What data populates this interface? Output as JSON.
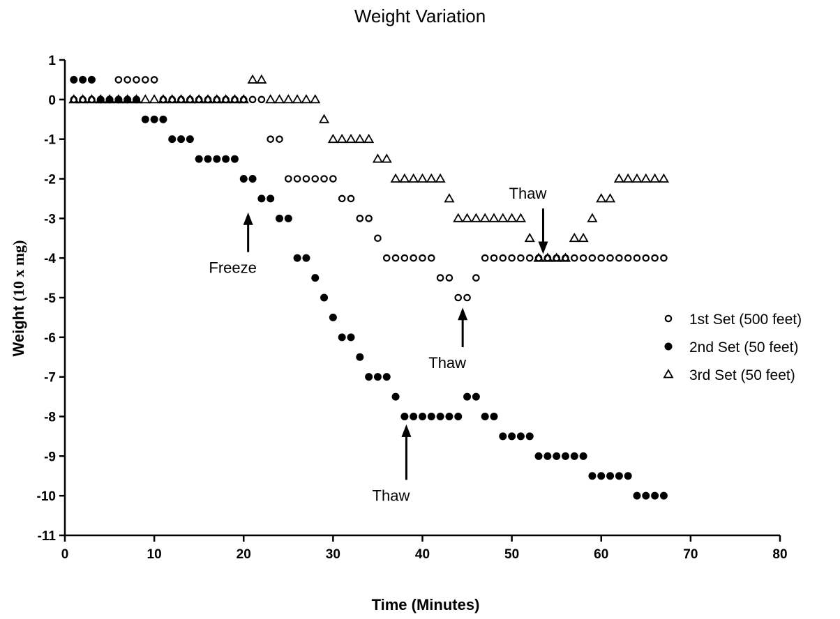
{
  "chart_data": {
    "type": "scatter",
    "title": "Weight Variation",
    "xlabel": "Time (Minutes)",
    "ylabel_main": "Weight ",
    "ylabel_unit": "(10 x mg)",
    "xlim": [
      0,
      80
    ],
    "ylim": [
      -11,
      1
    ],
    "x_ticks": [
      0,
      10,
      20,
      30,
      40,
      50,
      60,
      70,
      80
    ],
    "y_ticks": [
      1,
      0,
      -1,
      -2,
      -3,
      -4,
      -5,
      -6,
      -7,
      -8,
      -9,
      -10,
      -11
    ],
    "grid": false,
    "legend_position": "right",
    "series": [
      {
        "name": "1st Set (500 feet)",
        "marker": "open-circle",
        "points": [
          [
            1,
            0
          ],
          [
            2,
            0
          ],
          [
            3,
            0
          ],
          [
            4,
            0
          ],
          [
            5,
            0
          ],
          [
            6,
            0.5
          ],
          [
            7,
            0.5
          ],
          [
            8,
            0.5
          ],
          [
            9,
            0.5
          ],
          [
            10,
            0.5
          ],
          [
            11,
            0
          ],
          [
            12,
            0
          ],
          [
            13,
            0
          ],
          [
            14,
            0
          ],
          [
            15,
            0
          ],
          [
            16,
            0
          ],
          [
            17,
            0
          ],
          [
            18,
            0
          ],
          [
            19,
            0
          ],
          [
            20,
            0
          ],
          [
            21,
            0
          ],
          [
            22,
            0
          ],
          [
            23,
            -1
          ],
          [
            24,
            -1
          ],
          [
            25,
            -2
          ],
          [
            26,
            -2
          ],
          [
            27,
            -2
          ],
          [
            28,
            -2
          ],
          [
            29,
            -2
          ],
          [
            30,
            -2
          ],
          [
            31,
            -2.5
          ],
          [
            32,
            -2.5
          ],
          [
            33,
            -3
          ],
          [
            34,
            -3
          ],
          [
            35,
            -3.5
          ],
          [
            36,
            -4
          ],
          [
            37,
            -4
          ],
          [
            38,
            -4
          ],
          [
            39,
            -4
          ],
          [
            40,
            -4
          ],
          [
            41,
            -4
          ],
          [
            42,
            -4.5
          ],
          [
            43,
            -4.5
          ],
          [
            44,
            -5
          ],
          [
            45,
            -5
          ],
          [
            46,
            -4.5
          ],
          [
            47,
            -4
          ],
          [
            48,
            -4
          ],
          [
            49,
            -4
          ],
          [
            50,
            -4
          ],
          [
            51,
            -4
          ],
          [
            52,
            -4
          ],
          [
            53,
            -4
          ],
          [
            54,
            -4
          ],
          [
            55,
            -4
          ],
          [
            56,
            -4
          ],
          [
            57,
            -4
          ],
          [
            58,
            -4
          ],
          [
            59,
            -4
          ],
          [
            60,
            -4
          ],
          [
            61,
            -4
          ],
          [
            62,
            -4
          ],
          [
            63,
            -4
          ],
          [
            64,
            -4
          ],
          [
            65,
            -4
          ],
          [
            66,
            -4
          ],
          [
            67,
            -4
          ]
        ]
      },
      {
        "name": "2nd Set (50 feet)",
        "marker": "filled-circle",
        "points": [
          [
            1,
            0.5
          ],
          [
            2,
            0.5
          ],
          [
            3,
            0.5
          ],
          [
            4,
            0
          ],
          [
            5,
            0
          ],
          [
            6,
            0
          ],
          [
            7,
            0
          ],
          [
            8,
            0
          ],
          [
            9,
            -0.5
          ],
          [
            10,
            -0.5
          ],
          [
            11,
            -0.5
          ],
          [
            12,
            -1
          ],
          [
            13,
            -1
          ],
          [
            14,
            -1
          ],
          [
            15,
            -1.5
          ],
          [
            16,
            -1.5
          ],
          [
            17,
            -1.5
          ],
          [
            18,
            -1.5
          ],
          [
            19,
            -1.5
          ],
          [
            20,
            -2
          ],
          [
            21,
            -2
          ],
          [
            22,
            -2.5
          ],
          [
            23,
            -2.5
          ],
          [
            24,
            -3
          ],
          [
            25,
            -3
          ],
          [
            26,
            -4
          ],
          [
            27,
            -4
          ],
          [
            28,
            -4.5
          ],
          [
            29,
            -5
          ],
          [
            30,
            -5.5
          ],
          [
            31,
            -6
          ],
          [
            32,
            -6
          ],
          [
            33,
            -6.5
          ],
          [
            34,
            -7
          ],
          [
            35,
            -7
          ],
          [
            36,
            -7
          ],
          [
            37,
            -7.5
          ],
          [
            38,
            -8
          ],
          [
            39,
            -8
          ],
          [
            40,
            -8
          ],
          [
            41,
            -8
          ],
          [
            42,
            -8
          ],
          [
            43,
            -8
          ],
          [
            44,
            -8
          ],
          [
            45,
            -7.5
          ],
          [
            46,
            -7.5
          ],
          [
            47,
            -8
          ],
          [
            48,
            -8
          ],
          [
            49,
            -8.5
          ],
          [
            50,
            -8.5
          ],
          [
            51,
            -8.5
          ],
          [
            52,
            -8.5
          ],
          [
            53,
            -9
          ],
          [
            54,
            -9
          ],
          [
            55,
            -9
          ],
          [
            56,
            -9
          ],
          [
            57,
            -9
          ],
          [
            58,
            -9
          ],
          [
            59,
            -9.5
          ],
          [
            60,
            -9.5
          ],
          [
            61,
            -9.5
          ],
          [
            62,
            -9.5
          ],
          [
            63,
            -9.5
          ],
          [
            64,
            -10
          ],
          [
            65,
            -10
          ],
          [
            66,
            -10
          ],
          [
            67,
            -10
          ]
        ]
      },
      {
        "name": "3rd Set (50 feet)",
        "marker": "open-triangle",
        "points": [
          [
            1,
            0
          ],
          [
            2,
            0
          ],
          [
            3,
            0
          ],
          [
            4,
            0
          ],
          [
            5,
            0
          ],
          [
            6,
            0
          ],
          [
            7,
            0
          ],
          [
            8,
            0
          ],
          [
            9,
            0
          ],
          [
            10,
            0
          ],
          [
            11,
            0
          ],
          [
            12,
            0
          ],
          [
            13,
            0
          ],
          [
            14,
            0
          ],
          [
            15,
            0
          ],
          [
            16,
            0
          ],
          [
            17,
            0
          ],
          [
            18,
            0
          ],
          [
            19,
            0
          ],
          [
            20,
            0
          ],
          [
            21,
            0.5
          ],
          [
            22,
            0.5
          ],
          [
            23,
            0
          ],
          [
            24,
            0
          ],
          [
            25,
            0
          ],
          [
            26,
            0
          ],
          [
            27,
            0
          ],
          [
            28,
            0
          ],
          [
            29,
            -0.5
          ],
          [
            30,
            -1
          ],
          [
            31,
            -1
          ],
          [
            32,
            -1
          ],
          [
            33,
            -1
          ],
          [
            34,
            -1
          ],
          [
            35,
            -1.5
          ],
          [
            36,
            -1.5
          ],
          [
            37,
            -2
          ],
          [
            38,
            -2
          ],
          [
            39,
            -2
          ],
          [
            40,
            -2
          ],
          [
            41,
            -2
          ],
          [
            42,
            -2
          ],
          [
            43,
            -2.5
          ],
          [
            44,
            -3
          ],
          [
            45,
            -3
          ],
          [
            46,
            -3
          ],
          [
            47,
            -3
          ],
          [
            48,
            -3
          ],
          [
            49,
            -3
          ],
          [
            50,
            -3
          ],
          [
            51,
            -3
          ],
          [
            52,
            -3.5
          ],
          [
            53,
            -4
          ],
          [
            54,
            -4
          ],
          [
            55,
            -4
          ],
          [
            56,
            -4
          ],
          [
            57,
            -3.5
          ],
          [
            58,
            -3.5
          ],
          [
            59,
            -3
          ],
          [
            60,
            -2.5
          ],
          [
            61,
            -2.5
          ],
          [
            62,
            -2
          ],
          [
            63,
            -2
          ],
          [
            64,
            -2
          ],
          [
            65,
            -2
          ],
          [
            66,
            -2
          ],
          [
            67,
            -2
          ]
        ]
      }
    ],
    "annotations": [
      {
        "text": "Freeze",
        "arrow_x": 20.5,
        "arrow_tip_y": -2.85,
        "arrow_tail_y": -3.85,
        "text_position": "below"
      },
      {
        "text": "Thaw",
        "arrow_x": 38.2,
        "arrow_tip_y": -8.2,
        "arrow_tail_y": -9.6,
        "text_position": "below"
      },
      {
        "text": "Thaw",
        "arrow_x": 44.5,
        "arrow_tip_y": -5.25,
        "arrow_tail_y": -6.25,
        "text_position": "below"
      },
      {
        "text": "Thaw",
        "arrow_x": 53.5,
        "arrow_tip_y": -3.9,
        "arrow_tail_y": -2.75,
        "text_position": "above"
      }
    ]
  }
}
